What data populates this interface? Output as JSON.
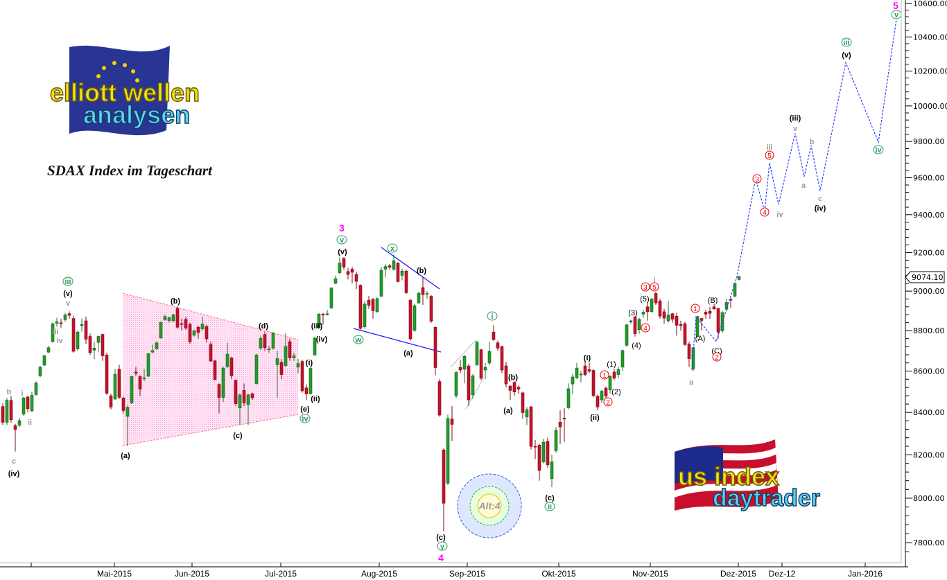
{
  "chart_data": {
    "type": "candlestick",
    "title": "SDAX Index im Tageschart",
    "y_scale": "log",
    "ylim": [
      7720,
      10620
    ],
    "y_ticks": [
      10600,
      10400,
      10200,
      10000,
      9800,
      9600,
      9400,
      9200,
      9000,
      8800,
      8600,
      8400,
      8200,
      8000,
      7800
    ],
    "y_tick_labels": [
      "10600.00",
      "10400.00",
      "10200.00",
      "10000.00",
      "9800.00",
      "9600.00",
      "9400.00",
      "9200.00",
      "9000.00",
      "8800.00",
      "8600.00",
      "8400.00",
      "8200.00",
      "8000.00",
      "7800.00"
    ],
    "x_tick_labels": [
      "Mai-2015",
      "Jun-2015",
      "Jul-2015",
      "Aug-2015",
      "Sep-2015",
      "Okt-2015",
      "Nov-2015",
      "Dez-2015",
      "Dez-12",
      "Jan-2016"
    ],
    "last_price": "9074.10",
    "colors": {
      "up": "#1f9e2a",
      "down": "#c8102e",
      "projection": "#2a3cff",
      "triangle_fill": "#ffd6ef",
      "triangle_edge": "#ff6b8a",
      "channel": "#1a1aff"
    },
    "ohlc": [
      [
        8428,
        8445,
        8340,
        8353
      ],
      [
        8353,
        8470,
        8340,
        8458
      ],
      [
        8458,
        8480,
        8350,
        8365
      ],
      [
        8337,
        8345,
        8215,
        8319
      ],
      [
        8339,
        8375,
        8330,
        8361
      ],
      [
        8391,
        8475,
        8385,
        8470
      ],
      [
        8474,
        8480,
        8400,
        8418
      ],
      [
        8408,
        8500,
        8400,
        8482
      ],
      [
        8486,
        8550,
        8480,
        8541
      ],
      [
        8577,
        8625,
        8570,
        8619
      ],
      [
        8629,
        8680,
        8625,
        8675
      ],
      [
        8693,
        8725,
        8688,
        8715
      ],
      [
        8745,
        8840,
        8740,
        8835
      ],
      [
        8837,
        8865,
        8820,
        8845
      ],
      [
        8839,
        8860,
        8815,
        8835
      ],
      [
        8855,
        8890,
        8845,
        8879
      ],
      [
        8885,
        8897,
        8860,
        8877
      ],
      [
        8861,
        8875,
        8690,
        8697
      ],
      [
        8709,
        8800,
        8700,
        8793
      ],
      [
        8825,
        8860,
        8795,
        8831
      ],
      [
        8849,
        8870,
        8735,
        8757
      ],
      [
        8771,
        8785,
        8680,
        8691
      ],
      [
        8703,
        8745,
        8660,
        8713
      ],
      [
        8741,
        8775,
        8695,
        8771
      ],
      [
        8781,
        8785,
        8650,
        8675
      ],
      [
        8679,
        8690,
        8485,
        8492
      ],
      [
        8480,
        8490,
        8415,
        8426
      ],
      [
        8464,
        8610,
        8460,
        8584
      ],
      [
        8609,
        8630,
        8465,
        8472
      ],
      [
        8469,
        8475,
        8395,
        8409
      ],
      [
        8381,
        8435,
        8241,
        8425
      ],
      [
        8446,
        8578,
        8440,
        8573
      ],
      [
        8595,
        8620,
        8575,
        8589
      ],
      [
        8573,
        8580,
        8480,
        8512
      ],
      [
        8563,
        8610,
        8550,
        8567
      ],
      [
        8575,
        8690,
        8570,
        8685
      ],
      [
        8693,
        8730,
        8688,
        8701
      ],
      [
        8709,
        8745,
        8705,
        8739
      ],
      [
        8763,
        8845,
        8760,
        8841
      ],
      [
        8855,
        8880,
        8850,
        8871
      ],
      [
        8851,
        8870,
        8840,
        8865
      ],
      [
        8849,
        8885,
        8845,
        8880
      ],
      [
        8912,
        8925,
        8810,
        8817
      ],
      [
        8835,
        8860,
        8800,
        8831
      ],
      [
        8857,
        8870,
        8805,
        8813
      ],
      [
        8831,
        8840,
        8735,
        8745
      ],
      [
        8777,
        8805,
        8770,
        8799
      ],
      [
        8817,
        8825,
        8760,
        8791
      ],
      [
        8809,
        8870,
        8800,
        8833
      ],
      [
        8821,
        8830,
        8740,
        8759
      ],
      [
        8731,
        8745,
        8645,
        8649
      ],
      [
        8650,
        8655,
        8555,
        8559
      ],
      [
        8535,
        8540,
        8395,
        8472
      ],
      [
        8472,
        8620,
        8450,
        8615
      ],
      [
        8621,
        8740,
        8615,
        8683
      ],
      [
        8665,
        8670,
        8560,
        8577
      ],
      [
        8555,
        8560,
        8430,
        8442
      ],
      [
        8421,
        8490,
        8341,
        8484
      ],
      [
        8506,
        8540,
        8430,
        8446
      ],
      [
        8438,
        8490,
        8341,
        8484
      ],
      [
        8490,
        8495,
        8460,
        8470
      ],
      [
        8539,
        8685,
        8535,
        8679
      ],
      [
        8713,
        8775,
        8705,
        8761
      ],
      [
        8781,
        8795,
        8700,
        8715
      ],
      [
        8705,
        8725,
        8690,
        8709
      ],
      [
        8713,
        8795,
        8705,
        8786
      ],
      [
        8631,
        8700,
        8470,
        8661
      ],
      [
        8643,
        8660,
        8560,
        8583
      ],
      [
        8627,
        8787,
        8620,
        8721
      ],
      [
        8745,
        8760,
        8650,
        8665
      ],
      [
        8665,
        8690,
        8650,
        8675
      ],
      [
        8619,
        8660,
        8590,
        8637
      ],
      [
        8647,
        8655,
        8495,
        8504
      ],
      [
        8518,
        8535,
        8460,
        8488
      ],
      [
        8490,
        8620,
        8485,
        8613
      ],
      [
        8679,
        8770,
        8675,
        8763
      ],
      [
        8815,
        8890,
        8810,
        8883
      ],
      [
        8883,
        8890,
        8830,
        8879
      ],
      [
        8881,
        8905,
        8875,
        8885
      ],
      [
        8914,
        9020,
        8910,
        9016
      ],
      [
        9040,
        9080,
        9035,
        9064
      ],
      [
        9095,
        9175,
        9085,
        9145
      ],
      [
        9169,
        9175,
        9110,
        9124
      ],
      [
        9101,
        9120,
        9060,
        9086
      ],
      [
        9113,
        9125,
        9040,
        9097
      ],
      [
        9086,
        9100,
        9010,
        9050
      ],
      [
        9030,
        9035,
        8805,
        8811
      ],
      [
        8819,
        8950,
        8810,
        8934
      ],
      [
        8954,
        8975,
        8910,
        8928
      ],
      [
        8958,
        8965,
        8860,
        8900
      ],
      [
        8895,
        8970,
        8890,
        8962
      ],
      [
        8974,
        9125,
        8970,
        9107
      ],
      [
        9113,
        9140,
        9070,
        9127
      ],
      [
        9131,
        9140,
        9110,
        9123
      ],
      [
        9113,
        9188,
        9105,
        9157
      ],
      [
        9145,
        9150,
        9045,
        9049
      ],
      [
        9081,
        9115,
        9055,
        9103
      ],
      [
        9103,
        9110,
        8985,
        8992
      ],
      [
        8954,
        8960,
        8750,
        8759
      ],
      [
        8801,
        8935,
        8795,
        8926
      ],
      [
        8940,
        8995,
        8935,
        8990
      ],
      [
        9018,
        9073,
        8930,
        8982
      ],
      [
        8986,
        9000,
        8960,
        8988
      ],
      [
        8974,
        8980,
        8840,
        8847
      ],
      [
        8817,
        8820,
        8580,
        8617
      ],
      [
        8549,
        8560,
        8380,
        8387
      ],
      [
        8223,
        8230,
        7851,
        7977
      ],
      [
        8069,
        8390,
        8060,
        8371
      ],
      [
        8369,
        8430,
        8265,
        8343
      ],
      [
        8480,
        8600,
        8470,
        8593
      ],
      [
        8618,
        8655,
        8590,
        8605
      ],
      [
        8609,
        8680,
        8540,
        8672
      ],
      [
        8625,
        8635,
        8430,
        8460
      ],
      [
        8484,
        8585,
        8465,
        8577
      ],
      [
        8631,
        8750,
        8625,
        8743
      ],
      [
        8705,
        8710,
        8555,
        8565
      ],
      [
        8605,
        8640,
        8560,
        8618
      ],
      [
        8639,
        8745,
        8630,
        8697
      ],
      [
        8793,
        8827,
        8750,
        8755
      ],
      [
        8739,
        8750,
        8700,
        8713
      ],
      [
        8721,
        8725,
        8590,
        8605
      ],
      [
        8625,
        8645,
        8520,
        8537
      ],
      [
        8527,
        8530,
        8460,
        8506
      ],
      [
        8545,
        8550,
        8480,
        8498
      ],
      [
        8521,
        8530,
        8490,
        8512
      ],
      [
        8494,
        8500,
        8370,
        8399
      ],
      [
        8379,
        8425,
        8340,
        8413
      ],
      [
        8427,
        8430,
        8225,
        8239
      ],
      [
        8239,
        8270,
        8180,
        8237
      ],
      [
        8245,
        8250,
        8080,
        8127
      ],
      [
        8167,
        8275,
        8160,
        8259
      ],
      [
        8263,
        8280,
        8140,
        8153
      ],
      [
        8089,
        8200,
        8050,
        8167
      ],
      [
        8219,
        8330,
        8210,
        8315
      ],
      [
        8353,
        8410,
        8250,
        8331
      ],
      [
        8373,
        8420,
        8260,
        8369
      ],
      [
        8422,
        8540,
        8415,
        8514
      ],
      [
        8537,
        8585,
        8490,
        8571
      ],
      [
        8567,
        8640,
        8560,
        8615
      ],
      [
        8581,
        8600,
        8545,
        8585
      ],
      [
        8625,
        8645,
        8575,
        8583
      ],
      [
        8607,
        8640,
        8590,
        8599
      ],
      [
        8603,
        8610,
        8475,
        8480
      ],
      [
        8478,
        8485,
        8410,
        8426
      ],
      [
        8460,
        8510,
        8445,
        8502
      ],
      [
        8517,
        8525,
        8465,
        8478
      ],
      [
        8508,
        8580,
        8490,
        8573
      ],
      [
        8595,
        8610,
        8555,
        8565
      ],
      [
        8583,
        8620,
        8565,
        8607
      ],
      [
        8619,
        8705,
        8600,
        8701
      ],
      [
        8727,
        8835,
        8720,
        8829
      ],
      [
        8843,
        8855,
        8835,
        8849
      ],
      [
        8867,
        8875,
        8770,
        8785
      ],
      [
        8805,
        8865,
        8785,
        8857
      ],
      [
        8883,
        8905,
        8865,
        8893
      ],
      [
        8920,
        8945,
        8850,
        8895
      ],
      [
        8896,
        8965,
        8890,
        8960
      ],
      [
        8988,
        8995,
        8930,
        8940
      ],
      [
        8950,
        8960,
        8860,
        8873
      ],
      [
        8895,
        8910,
        8835,
        8863
      ],
      [
        8849,
        8950,
        8840,
        8879
      ],
      [
        8885,
        8890,
        8840,
        8857
      ],
      [
        8873,
        8890,
        8775,
        8827
      ],
      [
        8831,
        8850,
        8800,
        8825
      ],
      [
        8835,
        8845,
        8725,
        8731
      ],
      [
        8733,
        8745,
        8620,
        8661
      ],
      [
        8611,
        8720,
        8600,
        8715
      ],
      [
        8771,
        8875,
        8765,
        8871
      ],
      [
        8861,
        8865,
        8800,
        8851
      ],
      [
        8893,
        8905,
        8860,
        8883
      ],
      [
        8897,
        8920,
        8860,
        8887
      ],
      [
        8920,
        8935,
        8905,
        8910
      ],
      [
        8912,
        8915,
        8760,
        8793
      ],
      [
        8799,
        8900,
        8790,
        8891
      ],
      [
        8908,
        8960,
        8900,
        8942
      ],
      [
        8958,
        8965,
        8915,
        8954
      ],
      [
        8974,
        9045,
        8970,
        9038
      ],
      [
        9060,
        9080,
        9055,
        9074.1
      ]
    ],
    "projection_path_prices": [
      8605,
      8870,
      8745,
      9074,
      9594,
      9418,
      9681,
      9455,
      9846,
      9606,
      9777,
      9529,
      10250,
      9796,
      10504
    ],
    "annotations": [
      {
        "text": "c",
        "style": "gray"
      },
      {
        "text": "(iv)",
        "style": "black"
      },
      {
        "text": "b",
        "style": "gray"
      },
      {
        "text": "i",
        "style": "gray"
      },
      {
        "text": "ii",
        "style": "gray"
      },
      {
        "text": "iii",
        "style": "gray"
      },
      {
        "text": "iv",
        "style": "gray"
      },
      {
        "text": "v",
        "style": "gray"
      },
      {
        "text": "(v)",
        "style": "black"
      },
      {
        "text": "iii",
        "style": "green-circle"
      },
      {
        "text": "(a)",
        "style": "black"
      },
      {
        "text": "(b)",
        "style": "black"
      },
      {
        "text": "(c)",
        "style": "black"
      },
      {
        "text": "(d)",
        "style": "black"
      },
      {
        "text": "(e)",
        "style": "black"
      },
      {
        "text": "iv",
        "style": "green-circle"
      },
      {
        "text": "(i)",
        "style": "black"
      },
      {
        "text": "(ii)",
        "style": "black"
      },
      {
        "text": "(iv)",
        "style": "black"
      },
      {
        "text": "(iii)",
        "style": "black"
      },
      {
        "text": "3",
        "style": "magenta"
      },
      {
        "text": "v",
        "style": "green-circle"
      },
      {
        "text": "(v)",
        "style": "black"
      },
      {
        "text": "x",
        "style": "green-circle"
      },
      {
        "text": "w",
        "style": "green-circle"
      },
      {
        "text": "(b)",
        "style": "black"
      },
      {
        "text": "(a)",
        "style": "black"
      },
      {
        "text": "i",
        "style": "green-circle"
      },
      {
        "text": "(b)",
        "style": "black"
      },
      {
        "text": "(a)",
        "style": "black"
      },
      {
        "text": "(c)",
        "style": "black"
      },
      {
        "text": "ii",
        "style": "green-circle"
      },
      {
        "text": "(c)",
        "style": "black"
      },
      {
        "text": "y",
        "style": "green-circle"
      },
      {
        "text": "4",
        "style": "magenta"
      },
      {
        "text": "(i)",
        "style": "black"
      },
      {
        "text": "(ii)",
        "style": "black"
      },
      {
        "text": "(1)",
        "style": "plain"
      },
      {
        "text": "(2)",
        "style": "plain"
      },
      {
        "text": "1",
        "style": "red-circle"
      },
      {
        "text": "2",
        "style": "red-circle"
      },
      {
        "text": "(3)",
        "style": "plain"
      },
      {
        "text": "(4)",
        "style": "plain"
      },
      {
        "text": "4",
        "style": "red-circle"
      },
      {
        "text": "(5)",
        "style": "plain"
      },
      {
        "text": "3",
        "style": "red-circle"
      },
      {
        "text": "5",
        "style": "red-circle"
      },
      {
        "text": "i",
        "style": "gray"
      },
      {
        "text": "ii",
        "style": "gray"
      },
      {
        "text": "1",
        "style": "red-circle"
      },
      {
        "text": "(A)",
        "style": "plain"
      },
      {
        "text": "(B)",
        "style": "plain"
      },
      {
        "text": "(C)",
        "style": "plain"
      },
      {
        "text": "2",
        "style": "red-circle"
      },
      {
        "text": "3",
        "style": "red-circle"
      },
      {
        "text": "4",
        "style": "red-circle"
      },
      {
        "text": "5",
        "style": "red-circle"
      },
      {
        "text": "iii",
        "style": "gray"
      },
      {
        "text": "iv",
        "style": "gray"
      },
      {
        "text": "(iii)",
        "style": "black"
      },
      {
        "text": "v",
        "style": "gray"
      },
      {
        "text": "a",
        "style": "gray"
      },
      {
        "text": "b",
        "style": "gray"
      },
      {
        "text": "c",
        "style": "gray"
      },
      {
        "text": "(iv)",
        "style": "black"
      },
      {
        "text": "iii",
        "style": "green-circle"
      },
      {
        "text": "(v)",
        "style": "black"
      },
      {
        "text": "iv",
        "style": "green-circle"
      },
      {
        "text": "5",
        "style": "magenta"
      },
      {
        "text": "v",
        "style": "green-circle"
      }
    ],
    "alt_label": "Alt:4"
  },
  "logos": {
    "top_left": {
      "line1": "elliott wellen",
      "line2": "analysen"
    },
    "bottom_right": {
      "line1": "us index",
      "line2": "daytrader"
    }
  }
}
